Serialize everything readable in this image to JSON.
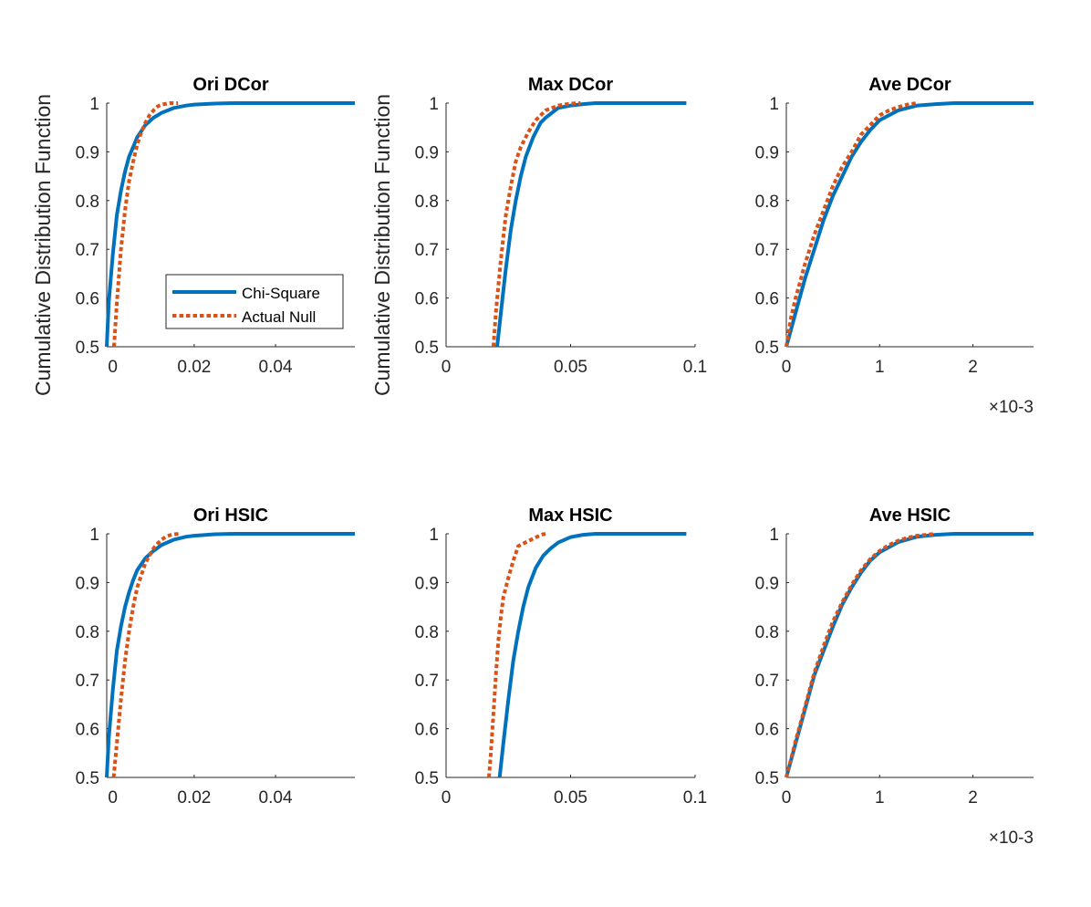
{
  "figure": {
    "ylabel": "Cumulative Distribution Function",
    "legend": {
      "location": "inside lower-right of first panel",
      "entries": [
        "Chi-Square",
        "Actual Null"
      ]
    },
    "colors": {
      "chi_square": "#0072BD",
      "actual_null": "#D95319",
      "axes": "#262626"
    }
  },
  "chart_data": [
    {
      "type": "line",
      "title": "Ori DCor",
      "xlabel": "",
      "ylabel": "Cumulative Distribution Function",
      "xlim": [
        -0.0015,
        0.0595
      ],
      "ylim": [
        0.5,
        1.0
      ],
      "xticks": [
        0,
        0.02,
        0.04
      ],
      "xtick_labels": [
        "0",
        "0.02",
        "0.04"
      ],
      "yticks": [
        0.5,
        0.6,
        0.7,
        0.8,
        0.9,
        1.0
      ],
      "ytick_labels": [
        "0.5",
        "0.6",
        "0.7",
        "0.8",
        "0.9",
        "1"
      ],
      "exponent_label": "",
      "series": [
        {
          "name": "Chi-Square",
          "style": "solid",
          "x": [
            -0.0015,
            -0.001,
            0,
            0.001,
            0.002,
            0.003,
            0.004,
            0.005,
            0.006,
            0.008,
            0.01,
            0.012,
            0.015,
            0.018,
            0.02,
            0.025,
            0.03,
            0.04,
            0.05,
            0.0595
          ],
          "y": [
            0.5,
            0.59,
            0.69,
            0.77,
            0.82,
            0.86,
            0.89,
            0.91,
            0.93,
            0.955,
            0.97,
            0.98,
            0.99,
            0.995,
            0.997,
            0.999,
            1.0,
            1.0,
            1.0,
            1.0
          ]
        },
        {
          "name": "Actual Null",
          "style": "dotted",
          "x": [
            0.0003,
            0.001,
            0.002,
            0.003,
            0.004,
            0.005,
            0.006,
            0.007,
            0.008,
            0.009,
            0.01,
            0.011,
            0.012,
            0.014,
            0.016
          ],
          "y": [
            0.5,
            0.59,
            0.7,
            0.78,
            0.84,
            0.88,
            0.915,
            0.94,
            0.96,
            0.975,
            0.985,
            0.993,
            0.997,
            1.0,
            1.0
          ]
        }
      ]
    },
    {
      "type": "line",
      "title": "Max DCor",
      "xlabel": "",
      "ylabel": "Cumulative Distribution Function",
      "xlim": [
        0,
        0.1
      ],
      "ylim": [
        0.5,
        1.0
      ],
      "xticks": [
        0,
        0.05,
        0.1
      ],
      "xtick_labels": [
        "0",
        "0.05",
        "0.1"
      ],
      "yticks": [
        0.5,
        0.6,
        0.7,
        0.8,
        0.9,
        1.0
      ],
      "ytick_labels": [
        "0.5",
        "0.6",
        "0.7",
        "0.8",
        "0.9",
        "1"
      ],
      "exponent_label": "",
      "series": [
        {
          "name": "Chi-Square",
          "style": "solid",
          "x": [
            0.0205,
            0.022,
            0.024,
            0.026,
            0.028,
            0.03,
            0.032,
            0.035,
            0.038,
            0.04,
            0.045,
            0.05,
            0.055,
            0.06,
            0.07,
            0.08,
            0.09,
            0.0965
          ],
          "y": [
            0.5,
            0.57,
            0.66,
            0.74,
            0.8,
            0.85,
            0.89,
            0.93,
            0.96,
            0.97,
            0.99,
            0.995,
            0.998,
            1.0,
            1.0,
            1.0,
            1.0,
            1.0
          ]
        },
        {
          "name": "Actual Null",
          "style": "dotted",
          "x": [
            0.019,
            0.02,
            0.022,
            0.024,
            0.026,
            0.028,
            0.03,
            0.033,
            0.036,
            0.04,
            0.045,
            0.05,
            0.054
          ],
          "y": [
            0.5,
            0.57,
            0.68,
            0.77,
            0.83,
            0.88,
            0.91,
            0.94,
            0.965,
            0.985,
            0.995,
            0.999,
            1.0
          ]
        }
      ]
    },
    {
      "type": "line",
      "title": "Ave DCor",
      "xlabel": "",
      "ylabel": "",
      "xlim": [
        0,
        0.00265
      ],
      "ylim": [
        0.5,
        1.0
      ],
      "xticks": [
        0,
        0.001,
        0.002
      ],
      "xtick_labels": [
        "0",
        "1",
        "2"
      ],
      "yticks": [
        0.5,
        0.6,
        0.7,
        0.8,
        0.9,
        1.0
      ],
      "ytick_labels": [
        "0.5",
        "0.6",
        "0.7",
        "0.8",
        "0.9",
        "1"
      ],
      "exponent_label": "×10-3",
      "series": [
        {
          "name": "Chi-Square",
          "style": "solid",
          "x": [
            0,
            0.0001,
            0.0002,
            0.0003,
            0.0004,
            0.0005,
            0.0006,
            0.0007,
            0.0008,
            0.0009,
            0.001,
            0.0012,
            0.0014,
            0.0016,
            0.0018,
            0.002,
            0.00265
          ],
          "y": [
            0.5,
            0.57,
            0.64,
            0.7,
            0.76,
            0.81,
            0.85,
            0.89,
            0.92,
            0.945,
            0.965,
            0.985,
            0.995,
            0.998,
            1.0,
            1.0,
            1.0
          ]
        },
        {
          "name": "Actual Null",
          "style": "dotted",
          "x": [
            0,
            5e-05,
            0.0001,
            0.0002,
            0.0003,
            0.0004,
            0.0005,
            0.0006,
            0.0007,
            0.0008,
            0.0009,
            0.001,
            0.0011,
            0.0012,
            0.0013,
            0.0014
          ],
          "y": [
            0.5,
            0.56,
            0.6,
            0.67,
            0.73,
            0.78,
            0.83,
            0.87,
            0.9,
            0.935,
            0.955,
            0.975,
            0.985,
            0.992,
            0.997,
            1.0
          ]
        }
      ]
    },
    {
      "type": "line",
      "title": "Ori HSIC",
      "xlabel": "",
      "ylabel": "",
      "xlim": [
        -0.0015,
        0.0595
      ],
      "ylim": [
        0.5,
        1.0
      ],
      "xticks": [
        0,
        0.02,
        0.04
      ],
      "xtick_labels": [
        "0",
        "0.02",
        "0.04"
      ],
      "yticks": [
        0.5,
        0.6,
        0.7,
        0.8,
        0.9,
        1.0
      ],
      "ytick_labels": [
        "0.5",
        "0.6",
        "0.7",
        "0.8",
        "0.9",
        "1"
      ],
      "exponent_label": "",
      "series": [
        {
          "name": "Chi-Square",
          "style": "solid",
          "x": [
            -0.0015,
            -0.001,
            0,
            0.001,
            0.002,
            0.003,
            0.004,
            0.005,
            0.006,
            0.008,
            0.01,
            0.012,
            0.015,
            0.018,
            0.02,
            0.025,
            0.03,
            0.04,
            0.05,
            0.0595
          ],
          "y": [
            0.5,
            0.58,
            0.68,
            0.76,
            0.81,
            0.85,
            0.88,
            0.905,
            0.925,
            0.95,
            0.965,
            0.977,
            0.988,
            0.994,
            0.996,
            0.999,
            1.0,
            1.0,
            1.0,
            1.0
          ]
        },
        {
          "name": "Actual Null",
          "style": "dotted",
          "x": [
            0.0002,
            0.001,
            0.002,
            0.003,
            0.004,
            0.005,
            0.006,
            0.007,
            0.008,
            0.009,
            0.01,
            0.011,
            0.012,
            0.013,
            0.014,
            0.015,
            0.0163
          ],
          "y": [
            0.5,
            0.57,
            0.66,
            0.74,
            0.8,
            0.85,
            0.89,
            0.915,
            0.94,
            0.955,
            0.97,
            0.98,
            0.988,
            0.994,
            0.997,
            0.999,
            1.0
          ]
        }
      ]
    },
    {
      "type": "line",
      "title": "Max HSIC",
      "xlabel": "",
      "ylabel": "",
      "xlim": [
        0,
        0.1
      ],
      "ylim": [
        0.5,
        1.0
      ],
      "xticks": [
        0,
        0.05,
        0.1
      ],
      "xtick_labels": [
        "0",
        "0.05",
        "0.1"
      ],
      "yticks": [
        0.5,
        0.6,
        0.7,
        0.8,
        0.9,
        1.0
      ],
      "ytick_labels": [
        "0.5",
        "0.6",
        "0.7",
        "0.8",
        "0.9",
        "1"
      ],
      "exponent_label": "",
      "series": [
        {
          "name": "Chi-Square",
          "style": "solid",
          "x": [
            0.0215,
            0.023,
            0.025,
            0.027,
            0.029,
            0.031,
            0.033,
            0.036,
            0.039,
            0.042,
            0.045,
            0.05,
            0.055,
            0.06,
            0.07,
            0.08,
            0.09,
            0.0965
          ],
          "y": [
            0.5,
            0.57,
            0.66,
            0.74,
            0.8,
            0.85,
            0.89,
            0.93,
            0.955,
            0.97,
            0.982,
            0.993,
            0.998,
            1.0,
            1.0,
            1.0,
            1.0,
            1.0
          ]
        },
        {
          "name": "Actual Null",
          "style": "dotted",
          "x": [
            0.0172,
            0.018,
            0.019,
            0.02,
            0.021,
            0.022,
            0.023,
            0.025,
            0.027,
            0.029,
            0.031,
            0.033,
            0.035,
            0.037,
            0.039,
            0.0405
          ],
          "y": [
            0.5,
            0.55,
            0.63,
            0.71,
            0.78,
            0.83,
            0.87,
            0.91,
            0.945,
            0.975,
            0.98,
            0.985,
            0.99,
            0.995,
            0.999,
            1.0
          ]
        }
      ]
    },
    {
      "type": "line",
      "title": "Ave HSIC",
      "xlabel": "",
      "ylabel": "",
      "xlim": [
        0,
        0.00265
      ],
      "ylim": [
        0.5,
        1.0
      ],
      "xticks": [
        0,
        0.001,
        0.002
      ],
      "xtick_labels": [
        "0",
        "1",
        "2"
      ],
      "yticks": [
        0.5,
        0.6,
        0.7,
        0.8,
        0.9,
        1.0
      ],
      "ytick_labels": [
        "0.5",
        "0.6",
        "0.7",
        "0.8",
        "0.9",
        "1"
      ],
      "exponent_label": "×10-3",
      "series": [
        {
          "name": "Chi-Square",
          "style": "solid",
          "x": [
            0,
            0.0001,
            0.0002,
            0.0003,
            0.0004,
            0.0005,
            0.0006,
            0.0007,
            0.0008,
            0.0009,
            0.001,
            0.0012,
            0.0014,
            0.0016,
            0.0018,
            0.002,
            0.00265
          ],
          "y": [
            0.5,
            0.57,
            0.64,
            0.71,
            0.76,
            0.81,
            0.855,
            0.89,
            0.92,
            0.945,
            0.962,
            0.983,
            0.994,
            0.998,
            1.0,
            1.0,
            1.0
          ]
        },
        {
          "name": "Actual Null",
          "style": "dotted",
          "x": [
            0,
            0.0001,
            0.0002,
            0.0003,
            0.0004,
            0.0005,
            0.0006,
            0.0007,
            0.0008,
            0.0009,
            0.001,
            0.0011,
            0.0012,
            0.0013,
            0.0014,
            0.0015,
            0.0016
          ],
          "y": [
            0.5,
            0.575,
            0.645,
            0.715,
            0.77,
            0.82,
            0.86,
            0.895,
            0.925,
            0.948,
            0.965,
            0.977,
            0.986,
            0.992,
            0.996,
            0.998,
            1.0
          ]
        }
      ]
    }
  ]
}
